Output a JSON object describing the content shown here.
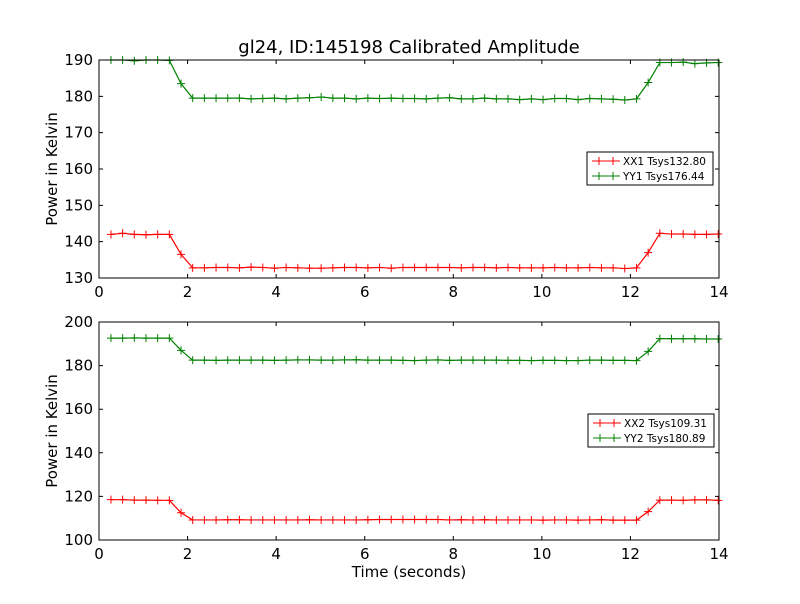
{
  "chart_data": [
    {
      "type": "line",
      "title": "gl24, ID:145198 Calibrated Amplitude",
      "xlabel": "",
      "ylabel": "Power in Kelvin",
      "xlim": [
        0,
        14
      ],
      "ylim": [
        130,
        190
      ],
      "xticks": [
        0,
        2,
        4,
        6,
        8,
        10,
        12,
        14
      ],
      "yticks": [
        130,
        140,
        150,
        160,
        170,
        180,
        190
      ],
      "legend": "center-right",
      "x_start": 0.27,
      "x_step": 0.2637,
      "series": [
        {
          "name": "XX1 Tsys132.80",
          "color": "#ff0000",
          "values": [
            142.0,
            142.3,
            142.0,
            141.9,
            142.0,
            142.0,
            136.5,
            132.8,
            132.8,
            132.9,
            132.9,
            132.8,
            133.0,
            132.9,
            132.7,
            132.9,
            132.8,
            132.7,
            132.7,
            132.8,
            132.9,
            132.9,
            132.8,
            132.9,
            132.7,
            132.9,
            132.9,
            132.9,
            132.9,
            132.9,
            132.8,
            132.9,
            132.9,
            132.8,
            132.9,
            132.8,
            132.8,
            132.8,
            132.9,
            132.8,
            132.8,
            132.9,
            132.8,
            132.8,
            132.6,
            132.8,
            137.0,
            142.3,
            142.1,
            142.1,
            142.0,
            142.0,
            142.1
          ]
        },
        {
          "name": "YY1 Tsys176.44",
          "color": "#008000",
          "values": [
            190.0,
            190.0,
            189.8,
            190.0,
            190.0,
            189.9,
            183.5,
            179.5,
            179.5,
            179.5,
            179.5,
            179.5,
            179.3,
            179.4,
            179.5,
            179.3,
            179.5,
            179.6,
            179.8,
            179.5,
            179.5,
            179.3,
            179.5,
            179.4,
            179.5,
            179.4,
            179.4,
            179.3,
            179.5,
            179.6,
            179.3,
            179.3,
            179.5,
            179.3,
            179.3,
            179.1,
            179.3,
            179.1,
            179.4,
            179.4,
            179.1,
            179.4,
            179.3,
            179.2,
            179.0,
            179.3,
            183.8,
            189.3,
            189.3,
            189.4,
            189.0,
            189.2,
            189.3
          ]
        }
      ]
    },
    {
      "type": "line",
      "title": "",
      "xlabel": "Time (seconds)",
      "ylabel": "Power in Kelvin",
      "xlim": [
        0,
        14
      ],
      "ylim": [
        100,
        200
      ],
      "xticks": [
        0,
        2,
        4,
        6,
        8,
        10,
        12,
        14
      ],
      "yticks": [
        100,
        120,
        140,
        160,
        180,
        200
      ],
      "legend": "center-right",
      "x_start": 0.27,
      "x_step": 0.2637,
      "series": [
        {
          "name": "XX2 Tsys109.31",
          "color": "#ff0000",
          "values": [
            118.5,
            118.5,
            118.3,
            118.3,
            118.2,
            118.2,
            112.5,
            109.2,
            109.2,
            109.2,
            109.3,
            109.3,
            109.2,
            109.2,
            109.2,
            109.2,
            109.2,
            109.3,
            109.2,
            109.2,
            109.2,
            109.2,
            109.3,
            109.4,
            109.4,
            109.4,
            109.4,
            109.4,
            109.4,
            109.2,
            109.3,
            109.2,
            109.3,
            109.2,
            109.2,
            109.2,
            109.2,
            109.1,
            109.2,
            109.2,
            109.1,
            109.2,
            109.3,
            109.1,
            109.1,
            109.1,
            113.0,
            118.3,
            118.3,
            118.2,
            118.4,
            118.4,
            118.2
          ]
        },
        {
          "name": "YY2 Tsys180.89",
          "color": "#008000",
          "values": [
            192.6,
            192.6,
            192.7,
            192.6,
            192.6,
            192.6,
            187.0,
            182.5,
            182.5,
            182.4,
            182.5,
            182.5,
            182.5,
            182.5,
            182.4,
            182.5,
            182.6,
            182.6,
            182.5,
            182.5,
            182.6,
            182.7,
            182.5,
            182.5,
            182.5,
            182.4,
            182.3,
            182.5,
            182.6,
            182.4,
            182.5,
            182.5,
            182.5,
            182.5,
            182.4,
            182.4,
            182.3,
            182.4,
            182.4,
            182.3,
            182.3,
            182.5,
            182.5,
            182.4,
            182.4,
            182.3,
            186.5,
            192.4,
            192.3,
            192.3,
            192.3,
            192.2,
            192.2
          ]
        }
      ]
    }
  ]
}
